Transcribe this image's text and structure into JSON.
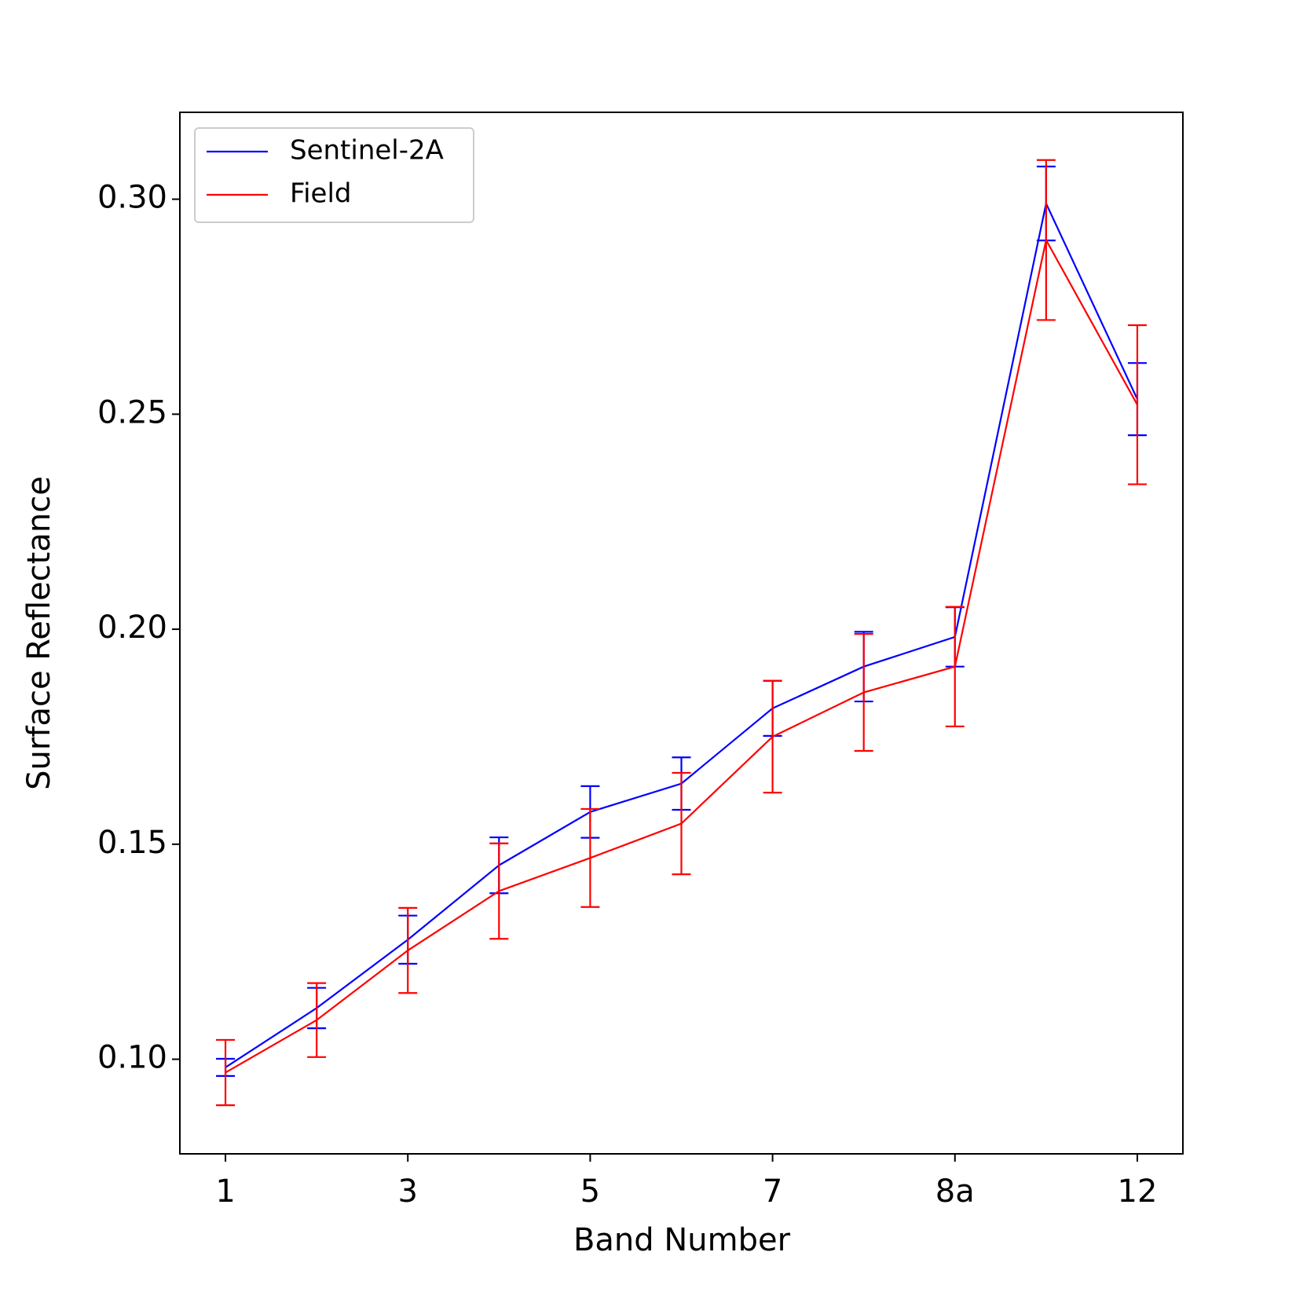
{
  "chart_data": {
    "type": "line",
    "xlabel": "Band Number",
    "ylabel": "Surface Reflectance",
    "categories": [
      "1",
      null,
      "3",
      null,
      "5",
      null,
      "7",
      null,
      "8a",
      null,
      "12"
    ],
    "series": [
      {
        "name": "Sentinel-2A",
        "color": "#0000ff",
        "values": [
          0.0981,
          0.1119,
          0.1278,
          0.1451,
          0.1575,
          0.1641,
          0.1816,
          0.1913,
          0.1982,
          0.299,
          0.2535
        ],
        "errors": [
          0.002,
          0.0047,
          0.0056,
          0.0065,
          0.006,
          0.0061,
          0.0064,
          0.0081,
          0.0069,
          0.0086,
          0.0084
        ]
      },
      {
        "name": "Field",
        "color": "#ff0000",
        "values": [
          0.0969,
          0.1091,
          0.1253,
          0.1391,
          0.1468,
          0.1548,
          0.175,
          0.1853,
          0.1913,
          0.2905,
          0.2522
        ],
        "errors": [
          0.0076,
          0.0086,
          0.0099,
          0.0111,
          0.0114,
          0.0118,
          0.013,
          0.0136,
          0.0139,
          0.0186,
          0.0185
        ]
      }
    ],
    "ylim": [
      0.078,
      0.3202
    ],
    "yticks": [
      {
        "value": 0.1,
        "label": "0.10"
      },
      {
        "value": 0.15,
        "label": "0.15"
      },
      {
        "value": 0.2,
        "label": "0.20"
      },
      {
        "value": 0.25,
        "label": "0.25"
      },
      {
        "value": 0.3,
        "label": "0.30"
      }
    ],
    "grid": false,
    "legend": "upper left"
  }
}
